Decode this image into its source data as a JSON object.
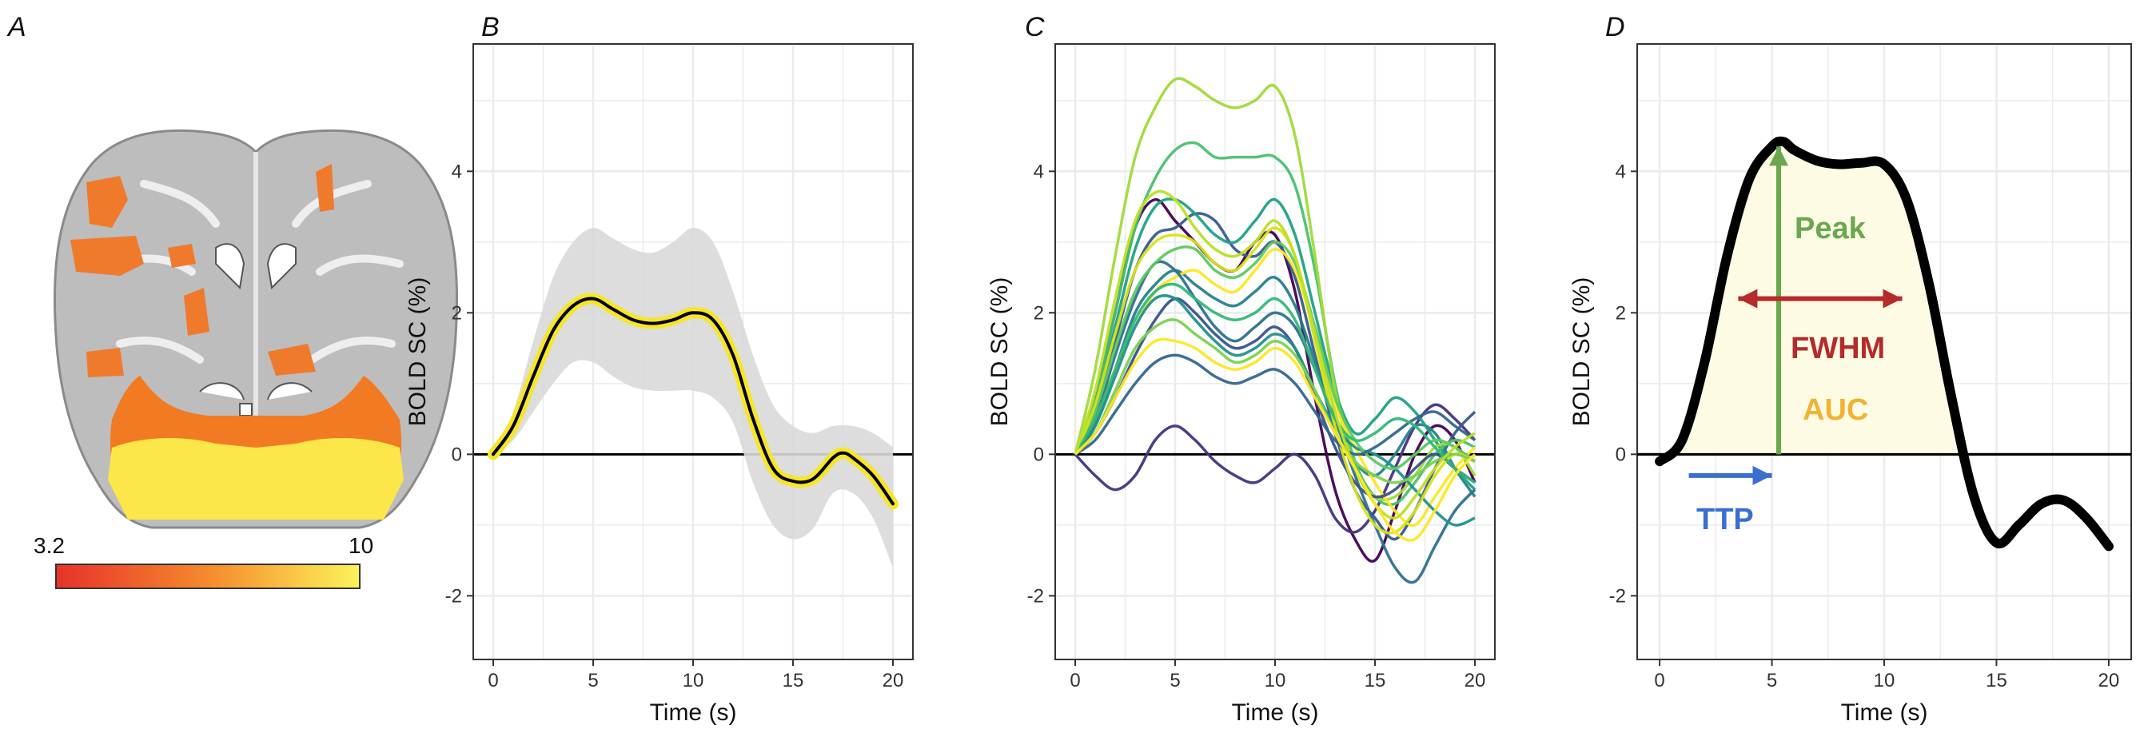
{
  "panels": {
    "a": {
      "label": "A",
      "colorbar": {
        "min_label": "3.2",
        "max_label": "10",
        "colors": [
          "#e8322a",
          "#f58a2c",
          "#fdf35a"
        ]
      }
    },
    "b": {
      "label": "B"
    },
    "c": {
      "label": "C"
    },
    "d": {
      "label": "D"
    }
  },
  "annotations": {
    "peak": {
      "text": "Peak",
      "color": "#6aa84f"
    },
    "fwhm": {
      "text": "FWHM",
      "color": "#b52a2a"
    },
    "auc": {
      "text": "AUC",
      "color": "#f2b233"
    },
    "ttp": {
      "text": "TTP",
      "color": "#3a6fd0"
    }
  },
  "colors": {
    "grid": "#ebebeb",
    "mean": "#000000",
    "halo": "#f7e628",
    "ribbon": "#d9d9d9",
    "auc_fill": "#fdfbe3"
  },
  "chart_data": [
    {
      "id": "b",
      "type": "line",
      "xlabel": "Time (s)",
      "ylabel": "BOLD SC (%)",
      "xlim": [
        -1,
        21
      ],
      "ylim": [
        -2.9,
        5.8
      ],
      "xticks": [
        0,
        5,
        10,
        15,
        20
      ],
      "xtick_labels": [
        "0",
        "5",
        "10",
        "15",
        "20"
      ],
      "yticks": [
        -2,
        0,
        2,
        4
      ],
      "ytick_labels": [
        "-2",
        "0",
        "2",
        "4"
      ],
      "series": [
        {
          "name": "mean",
          "x": [
            0,
            1,
            2,
            3,
            4,
            5,
            6,
            7,
            8,
            9,
            10,
            11,
            12,
            13,
            14,
            15,
            16,
            17,
            17.5,
            18,
            19,
            20
          ],
          "y": [
            0,
            0.4,
            1.1,
            1.75,
            2.1,
            2.2,
            2.05,
            1.9,
            1.85,
            1.9,
            2.0,
            1.9,
            1.4,
            0.5,
            -0.2,
            -0.38,
            -0.35,
            -0.05,
            0.02,
            -0.05,
            -0.3,
            -0.7
          ]
        },
        {
          "name": "ci_upper",
          "x": [
            0,
            1,
            2,
            3,
            4,
            5,
            6,
            7,
            8,
            9,
            10,
            11,
            12,
            13,
            14,
            15,
            16,
            17,
            18,
            19,
            20
          ],
          "y": [
            0,
            0.6,
            1.6,
            2.5,
            3.0,
            3.2,
            3.05,
            2.9,
            2.85,
            3.0,
            3.2,
            3.0,
            2.3,
            1.4,
            0.7,
            0.4,
            0.3,
            0.4,
            0.4,
            0.3,
            0.1
          ]
        },
        {
          "name": "ci_lower",
          "x": [
            0,
            1,
            2,
            3,
            4,
            5,
            6,
            7,
            8,
            9,
            10,
            11,
            12,
            13,
            14,
            15,
            16,
            17,
            18,
            19,
            20
          ],
          "y": [
            0,
            0.2,
            0.6,
            1.0,
            1.3,
            1.3,
            1.1,
            0.95,
            0.9,
            0.9,
            0.9,
            0.8,
            0.45,
            -0.4,
            -1.0,
            -1.2,
            -1.05,
            -0.55,
            -0.55,
            -0.9,
            -1.6
          ]
        }
      ]
    },
    {
      "id": "c",
      "type": "line",
      "xlabel": "Time (s)",
      "ylabel": "BOLD SC (%)",
      "xlim": [
        -1,
        21
      ],
      "ylim": [
        -2.9,
        5.8
      ],
      "xticks": [
        0,
        5,
        10,
        15,
        20
      ],
      "xtick_labels": [
        "0",
        "5",
        "10",
        "15",
        "20"
      ],
      "yticks": [
        -2,
        0,
        2,
        4
      ],
      "ytick_labels": [
        "-2",
        "0",
        "2",
        "4"
      ],
      "series": [
        {
          "name": "s1",
          "color": "#440154",
          "y": [
            0,
            0.8,
            2.0,
            3.2,
            3.6,
            3.3,
            3.0,
            2.7,
            2.6,
            3.0,
            3.1,
            2.3,
            0.8,
            -0.5,
            -1.2,
            -1.5,
            -0.8,
            0.0,
            0.4,
            0.2,
            -0.4
          ]
        },
        {
          "name": "s2",
          "color": "#46327e",
          "y": [
            0,
            -0.3,
            -0.5,
            -0.3,
            0.2,
            0.4,
            0.2,
            -0.1,
            -0.3,
            -0.4,
            -0.2,
            0.0,
            -0.3,
            -0.9,
            -1.1,
            -0.8,
            -0.2,
            0.4,
            0.7,
            0.5,
            0.2
          ]
        },
        {
          "name": "s3",
          "color": "#365c8d",
          "y": [
            0,
            0.6,
            1.6,
            2.6,
            3.1,
            3.2,
            3.4,
            3.3,
            2.9,
            2.8,
            3.0,
            2.5,
            1.4,
            0.3,
            -0.5,
            -0.9,
            -1.2,
            -0.8,
            -0.2,
            0.3,
            0.6
          ]
        },
        {
          "name": "s4",
          "color": "#277f8e",
          "y": [
            0,
            0.4,
            1.2,
            2.0,
            2.4,
            2.6,
            2.4,
            2.2,
            2.1,
            2.3,
            2.5,
            2.1,
            1.3,
            0.5,
            -0.1,
            -0.3,
            0.0,
            0.4,
            0.3,
            -0.2,
            -0.6
          ]
        },
        {
          "name": "s5",
          "color": "#1fa187",
          "y": [
            0,
            0.7,
            1.8,
            2.9,
            3.5,
            3.6,
            3.4,
            3.1,
            3.0,
            3.3,
            3.6,
            3.1,
            2.0,
            0.9,
            0.3,
            0.5,
            0.8,
            0.6,
            0.2,
            -0.2,
            -0.5
          ]
        },
        {
          "name": "s6",
          "color": "#4ac16d",
          "y": [
            0,
            0.8,
            2.0,
            3.2,
            3.9,
            4.3,
            4.4,
            4.2,
            4.2,
            4.2,
            4.2,
            3.8,
            2.6,
            1.0,
            -0.1,
            -0.6,
            -0.7,
            -0.4,
            0.0,
            0.2,
            0.1
          ]
        },
        {
          "name": "s7",
          "color": "#a0da39",
          "y": [
            0,
            1.2,
            2.8,
            4.2,
            4.9,
            5.3,
            5.2,
            5.0,
            4.9,
            5.0,
            5.2,
            4.5,
            2.8,
            0.9,
            -0.2,
            -0.6,
            -0.6,
            -0.3,
            0.1,
            0.1,
            -0.3
          ]
        },
        {
          "name": "s8",
          "color": "#fde725",
          "y": [
            0,
            0.5,
            1.2,
            1.8,
            2.3,
            2.5,
            2.6,
            2.4,
            2.3,
            2.6,
            2.9,
            2.6,
            1.7,
            0.7,
            0.1,
            -0.4,
            -0.8,
            -1.0,
            -0.6,
            -0.2,
            0.1
          ]
        },
        {
          "name": "s9",
          "color": "#2c728e",
          "y": [
            0,
            0.5,
            1.4,
            2.2,
            2.7,
            2.6,
            2.2,
            1.8,
            1.6,
            1.8,
            2.0,
            1.8,
            1.2,
            0.5,
            -0.3,
            -1.0,
            -1.6,
            -1.8,
            -1.3,
            -0.8,
            -0.5
          ]
        },
        {
          "name": "s10",
          "color": "#3b528b",
          "y": [
            0,
            0.3,
            0.8,
            1.4,
            1.9,
            2.2,
            2.0,
            1.7,
            1.5,
            1.6,
            1.8,
            1.5,
            0.8,
            0.1,
            -0.4,
            -0.6,
            -0.5,
            -0.2,
            0.0,
            -0.2,
            -0.4
          ]
        },
        {
          "name": "s11",
          "color": "#21918c",
          "y": [
            0,
            0.4,
            1.1,
            1.8,
            2.2,
            2.2,
            1.9,
            1.6,
            1.4,
            1.5,
            1.7,
            1.5,
            0.9,
            0.4,
            0.1,
            0.0,
            -0.2,
            -0.5,
            -0.8,
            -1.0,
            -0.9
          ]
        },
        {
          "name": "s12",
          "color": "#5ec962",
          "y": [
            0,
            0.6,
            1.5,
            2.3,
            2.7,
            2.9,
            2.9,
            2.6,
            2.5,
            2.7,
            3.0,
            2.7,
            1.8,
            0.8,
            0.2,
            -0.1,
            -0.2,
            0.0,
            0.2,
            0.1,
            -0.1
          ]
        },
        {
          "name": "s13",
          "color": "#d8e219",
          "y": [
            0,
            0.7,
            1.7,
            2.6,
            3.0,
            3.1,
            3.0,
            2.7,
            2.6,
            2.9,
            3.2,
            2.8,
            1.6,
            0.4,
            -0.5,
            -1.0,
            -1.1,
            -0.8,
            -0.3,
            0.0,
            -0.1
          ]
        },
        {
          "name": "s14",
          "color": "#7ad151",
          "y": [
            0,
            0.3,
            0.9,
            1.5,
            1.8,
            1.9,
            1.7,
            1.5,
            1.3,
            1.4,
            1.6,
            1.4,
            0.9,
            0.3,
            -0.1,
            -0.3,
            -0.4,
            -0.3,
            -0.1,
            0.0,
            -0.1
          ]
        },
        {
          "name": "s15",
          "color": "#31688e",
          "y": [
            0,
            0.2,
            0.6,
            1.0,
            1.3,
            1.4,
            1.3,
            1.1,
            1.0,
            1.1,
            1.2,
            1.0,
            0.6,
            0.2,
            0.0,
            0.1,
            0.3,
            0.5,
            0.6,
            0.4,
            0.2
          ]
        },
        {
          "name": "s16",
          "color": "#35b779",
          "y": [
            0,
            0.5,
            1.2,
            1.9,
            2.3,
            2.4,
            2.2,
            2.0,
            1.9,
            2.0,
            2.2,
            1.9,
            1.2,
            0.5,
            0.2,
            0.3,
            0.5,
            0.4,
            0.1,
            -0.2,
            -0.4
          ]
        },
        {
          "name": "s17",
          "color": "#bddf26",
          "y": [
            0,
            0.9,
            2.2,
            3.3,
            3.7,
            3.6,
            3.2,
            2.9,
            2.8,
            3.0,
            3.3,
            2.8,
            1.7,
            0.6,
            -0.2,
            -0.7,
            -0.9,
            -0.6,
            -0.2,
            0.1,
            0.3
          ]
        },
        {
          "name": "s18",
          "color": "#fde725",
          "y": [
            0,
            0.3,
            0.8,
            1.3,
            1.6,
            1.6,
            1.5,
            1.3,
            1.2,
            1.3,
            1.5,
            1.3,
            0.8,
            0.3,
            -0.2,
            -0.7,
            -1.1,
            -1.2,
            -0.8,
            -0.3,
            0.0
          ]
        }
      ]
    },
    {
      "id": "d",
      "type": "line",
      "xlabel": "Time (s)",
      "ylabel": "BOLD SC (%)",
      "xlim": [
        -1,
        21
      ],
      "ylim": [
        -2.9,
        5.8
      ],
      "xticks": [
        0,
        5,
        10,
        15,
        20
      ],
      "xtick_labels": [
        "0",
        "5",
        "10",
        "15",
        "20"
      ],
      "yticks": [
        -2,
        0,
        2,
        4
      ],
      "ytick_labels": [
        "-2",
        "0",
        "2",
        "4"
      ],
      "series": [
        {
          "name": "hrf",
          "x": [
            0,
            1,
            2,
            3,
            4,
            5,
            5.5,
            6,
            7,
            8,
            9,
            10,
            11,
            12,
            13,
            14,
            15,
            16,
            17,
            18,
            19,
            20
          ],
          "y": [
            -0.1,
            0.2,
            1.3,
            2.8,
            3.9,
            4.35,
            4.42,
            4.3,
            4.15,
            4.1,
            4.12,
            4.1,
            3.6,
            2.4,
            0.8,
            -0.6,
            -1.25,
            -1.0,
            -0.7,
            -0.65,
            -0.9,
            -1.3
          ]
        }
      ],
      "peak": {
        "x": 5.3,
        "y_start": 0,
        "y_end": 4.35
      },
      "fwhm": {
        "x_start": 3.5,
        "x_end": 10.8,
        "y": 2.2
      },
      "ttp": {
        "x_start": 1.3,
        "x_end": 5.0,
        "y": -0.3
      },
      "auc": {
        "x_start": 0.5,
        "x_end": 13.7
      }
    }
  ]
}
